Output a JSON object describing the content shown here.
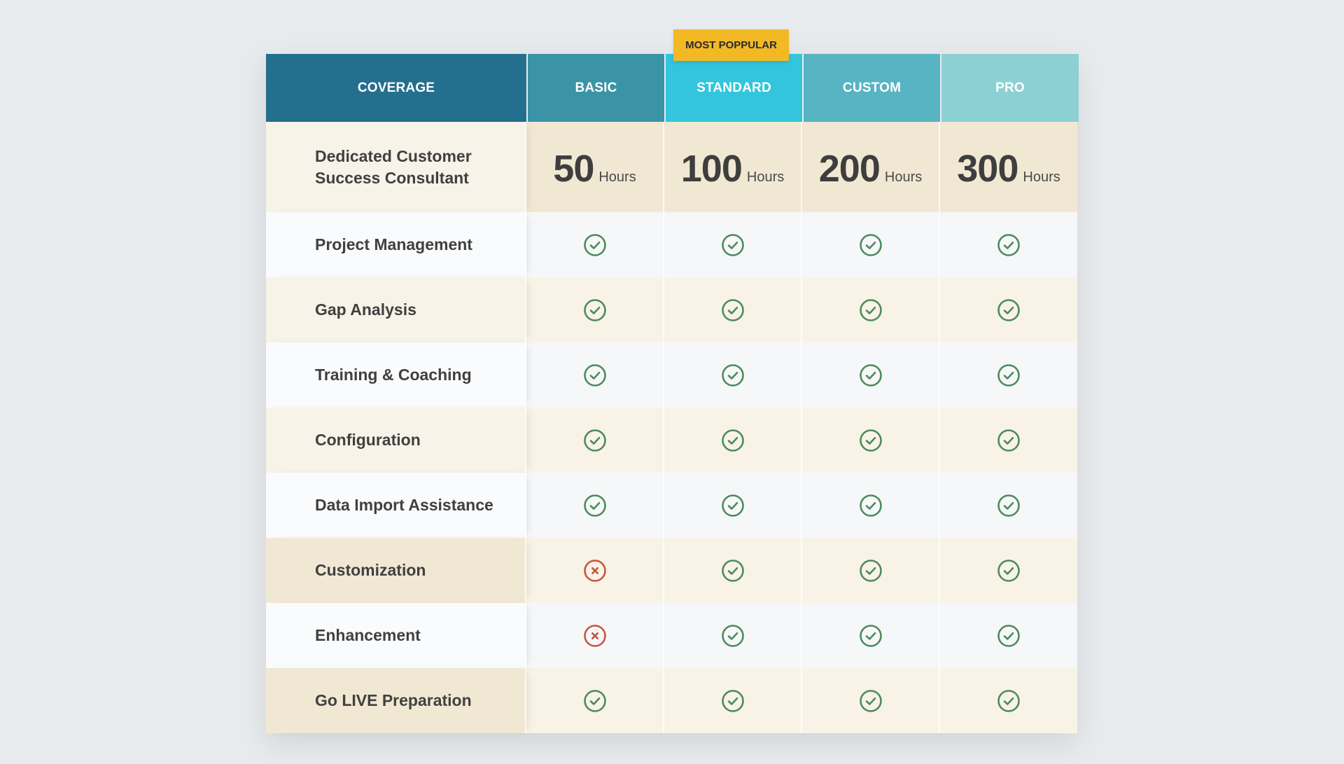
{
  "badge": "MOST POPPULAR",
  "header": {
    "coverage": "COVERAGE",
    "plans": [
      "BASIC",
      "STANDARD",
      "CUSTOM",
      "PRO"
    ]
  },
  "colors": {
    "header_coverage": "#256f8e",
    "header_basic": "#3a94a6",
    "header_standard": "#33c5dd",
    "header_custom": "#58b3c3",
    "header_pro": "#8dd0d4",
    "badge": "#f2b925",
    "check": "#4c8b5c",
    "cross": "#c9553d"
  },
  "hours_row": {
    "label": "Dedicated Customer Success Consultant",
    "unit": "Hours",
    "values": [
      "50",
      "100",
      "200",
      "300"
    ]
  },
  "features": [
    {
      "label": "Project Management",
      "values": [
        "check",
        "check",
        "check",
        "check"
      ]
    },
    {
      "label": "Gap Analysis",
      "values": [
        "check",
        "check",
        "check",
        "check"
      ]
    },
    {
      "label": "Training & Coaching",
      "values": [
        "check",
        "check",
        "check",
        "check"
      ]
    },
    {
      "label": "Configuration",
      "values": [
        "check",
        "check",
        "check",
        "check"
      ]
    },
    {
      "label": "Data Import Assistance",
      "values": [
        "check",
        "check",
        "check",
        "check"
      ]
    },
    {
      "label": "Customization",
      "values": [
        "cross",
        "check",
        "check",
        "check"
      ]
    },
    {
      "label": "Enhancement",
      "values": [
        "cross",
        "check",
        "check",
        "check"
      ]
    },
    {
      "label": "Go LIVE Preparation",
      "values": [
        "check",
        "check",
        "check",
        "check"
      ]
    }
  ]
}
